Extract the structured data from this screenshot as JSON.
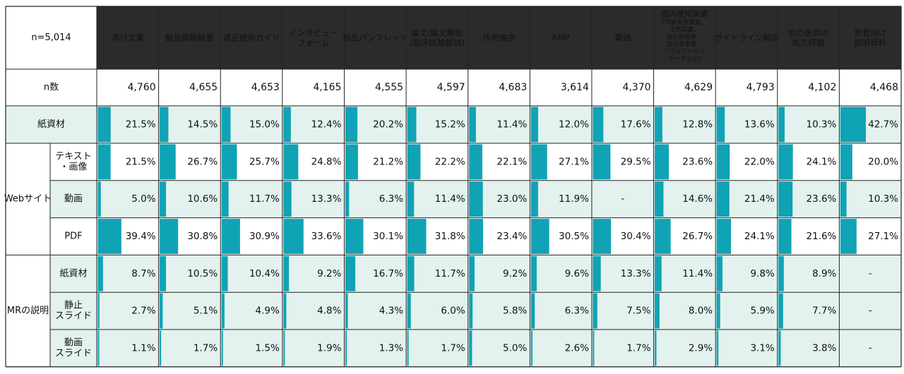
{
  "chart_data": {
    "type": "table",
    "n_label": "n=5,014",
    "columns": [
      {
        "label": "添付文書",
        "sub": []
      },
      {
        "label": "製品情報概要",
        "sub": []
      },
      {
        "label": "適正使用ガイド",
        "sub": []
      },
      {
        "label": "インタビュー\nフォーム",
        "sub": []
      },
      {
        "label": "製品パンフレット",
        "sub": []
      },
      {
        "label": "論文/論文解説\n(臨床試験解説)",
        "sub": []
      },
      {
        "label": "作用機序",
        "sub": []
      },
      {
        "label": "RMP",
        "sub": []
      },
      {
        "label": "薬価",
        "sub": []
      },
      {
        "label": "国内使用実績",
        "sub": [
          "(市販直後調査、",
          "全例調査、",
          "納入施設数、",
          "投与患者数、",
          "リアルワールド",
          "データなど)"
        ]
      },
      {
        "label": "ガイドライン解説",
        "sub": []
      },
      {
        "label": "他の医師の\n処方経験",
        "sub": []
      },
      {
        "label": "患者向け\n説明資料",
        "sub": []
      }
    ],
    "n_row": {
      "label": "n数",
      "values": [
        "4,760",
        "4,655",
        "4,653",
        "4,165",
        "4,555",
        "4,597",
        "4,683",
        "3,614",
        "4,370",
        "4,629",
        "4,793",
        "4,102",
        "4,468"
      ]
    },
    "groups": [
      {
        "label": "紙資材",
        "rows": [
          {
            "label": "",
            "values": [
              21.5,
              14.5,
              15.0,
              12.4,
              20.2,
              15.2,
              11.4,
              12.0,
              17.6,
              12.8,
              13.6,
              10.3,
              42.7
            ]
          }
        ]
      },
      {
        "label": "Webサイト",
        "rows": [
          {
            "label": "テキスト\n・画像",
            "values": [
              21.5,
              26.7,
              25.7,
              24.8,
              21.2,
              22.2,
              22.1,
              27.1,
              29.5,
              23.6,
              22.0,
              24.1,
              20.0
            ]
          },
          {
            "label": "動画",
            "values": [
              5.0,
              10.6,
              11.7,
              13.3,
              6.3,
              11.4,
              23.0,
              11.9,
              null,
              14.6,
              21.4,
              23.6,
              10.3
            ]
          },
          {
            "label": "PDF",
            "values": [
              39.4,
              30.8,
              30.9,
              33.6,
              30.1,
              31.8,
              23.4,
              30.5,
              30.4,
              26.7,
              24.1,
              21.6,
              27.1
            ]
          }
        ]
      },
      {
        "label": "MRの説明",
        "rows": [
          {
            "label": "紙資材",
            "values": [
              8.7,
              10.5,
              10.4,
              9.2,
              16.7,
              11.7,
              9.2,
              9.6,
              13.3,
              11.4,
              9.8,
              8.9,
              null
            ]
          },
          {
            "label": "静止\nスライド",
            "values": [
              2.7,
              5.1,
              4.9,
              4.8,
              4.3,
              6.0,
              5.8,
              6.3,
              7.5,
              8.0,
              5.9,
              7.7,
              null
            ]
          },
          {
            "label": "動画\nスライド",
            "values": [
              1.1,
              1.7,
              1.5,
              1.9,
              1.3,
              1.7,
              5.0,
              2.6,
              1.7,
              2.9,
              3.1,
              3.8,
              null
            ]
          }
        ]
      }
    ],
    "missing_label": "-",
    "bar_max_percent": 100,
    "colors": {
      "header_bg": "#2b2b2b",
      "header_text": "#ffffff",
      "shaded_row_bg": "#e3f2ee",
      "bar": "#0fa3b5",
      "border": "#222222"
    }
  }
}
